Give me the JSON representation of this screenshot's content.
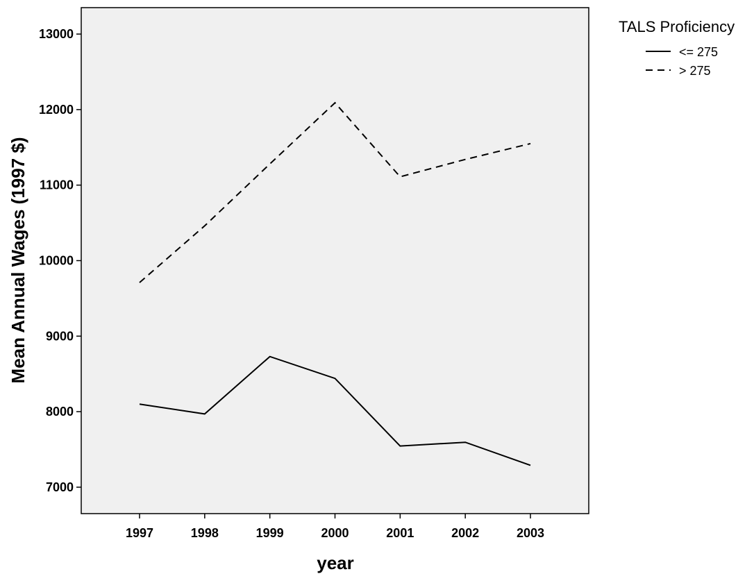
{
  "chart_data": {
    "type": "line",
    "xlabel": "year",
    "ylabel": "Mean Annual Wages (1997 $)",
    "x": [
      "1997",
      "1998",
      "1999",
      "2000",
      "2001",
      "2002",
      "2003"
    ],
    "ylim": [
      6650,
      13350
    ],
    "yticks": [
      7000,
      8000,
      9000,
      10000,
      11000,
      12000,
      13000
    ],
    "ytick_labels": [
      "7000",
      "8000",
      "9000",
      "10000",
      "11000",
      "12000",
      "13000"
    ],
    "grid": false,
    "plot_background": "#f0f0f0",
    "line_color": "#000000",
    "legend": {
      "title": "TALS Proficiency",
      "placement": "top-right outside"
    },
    "series": [
      {
        "name": "<= 275",
        "style": "solid",
        "values": [
          8100,
          7970,
          8730,
          8440,
          7545,
          7595,
          7290
        ]
      },
      {
        "name": "> 275",
        "style": "dashed",
        "values": [
          9710,
          10460,
          11280,
          12090,
          11110,
          11340,
          11550
        ]
      }
    ]
  }
}
